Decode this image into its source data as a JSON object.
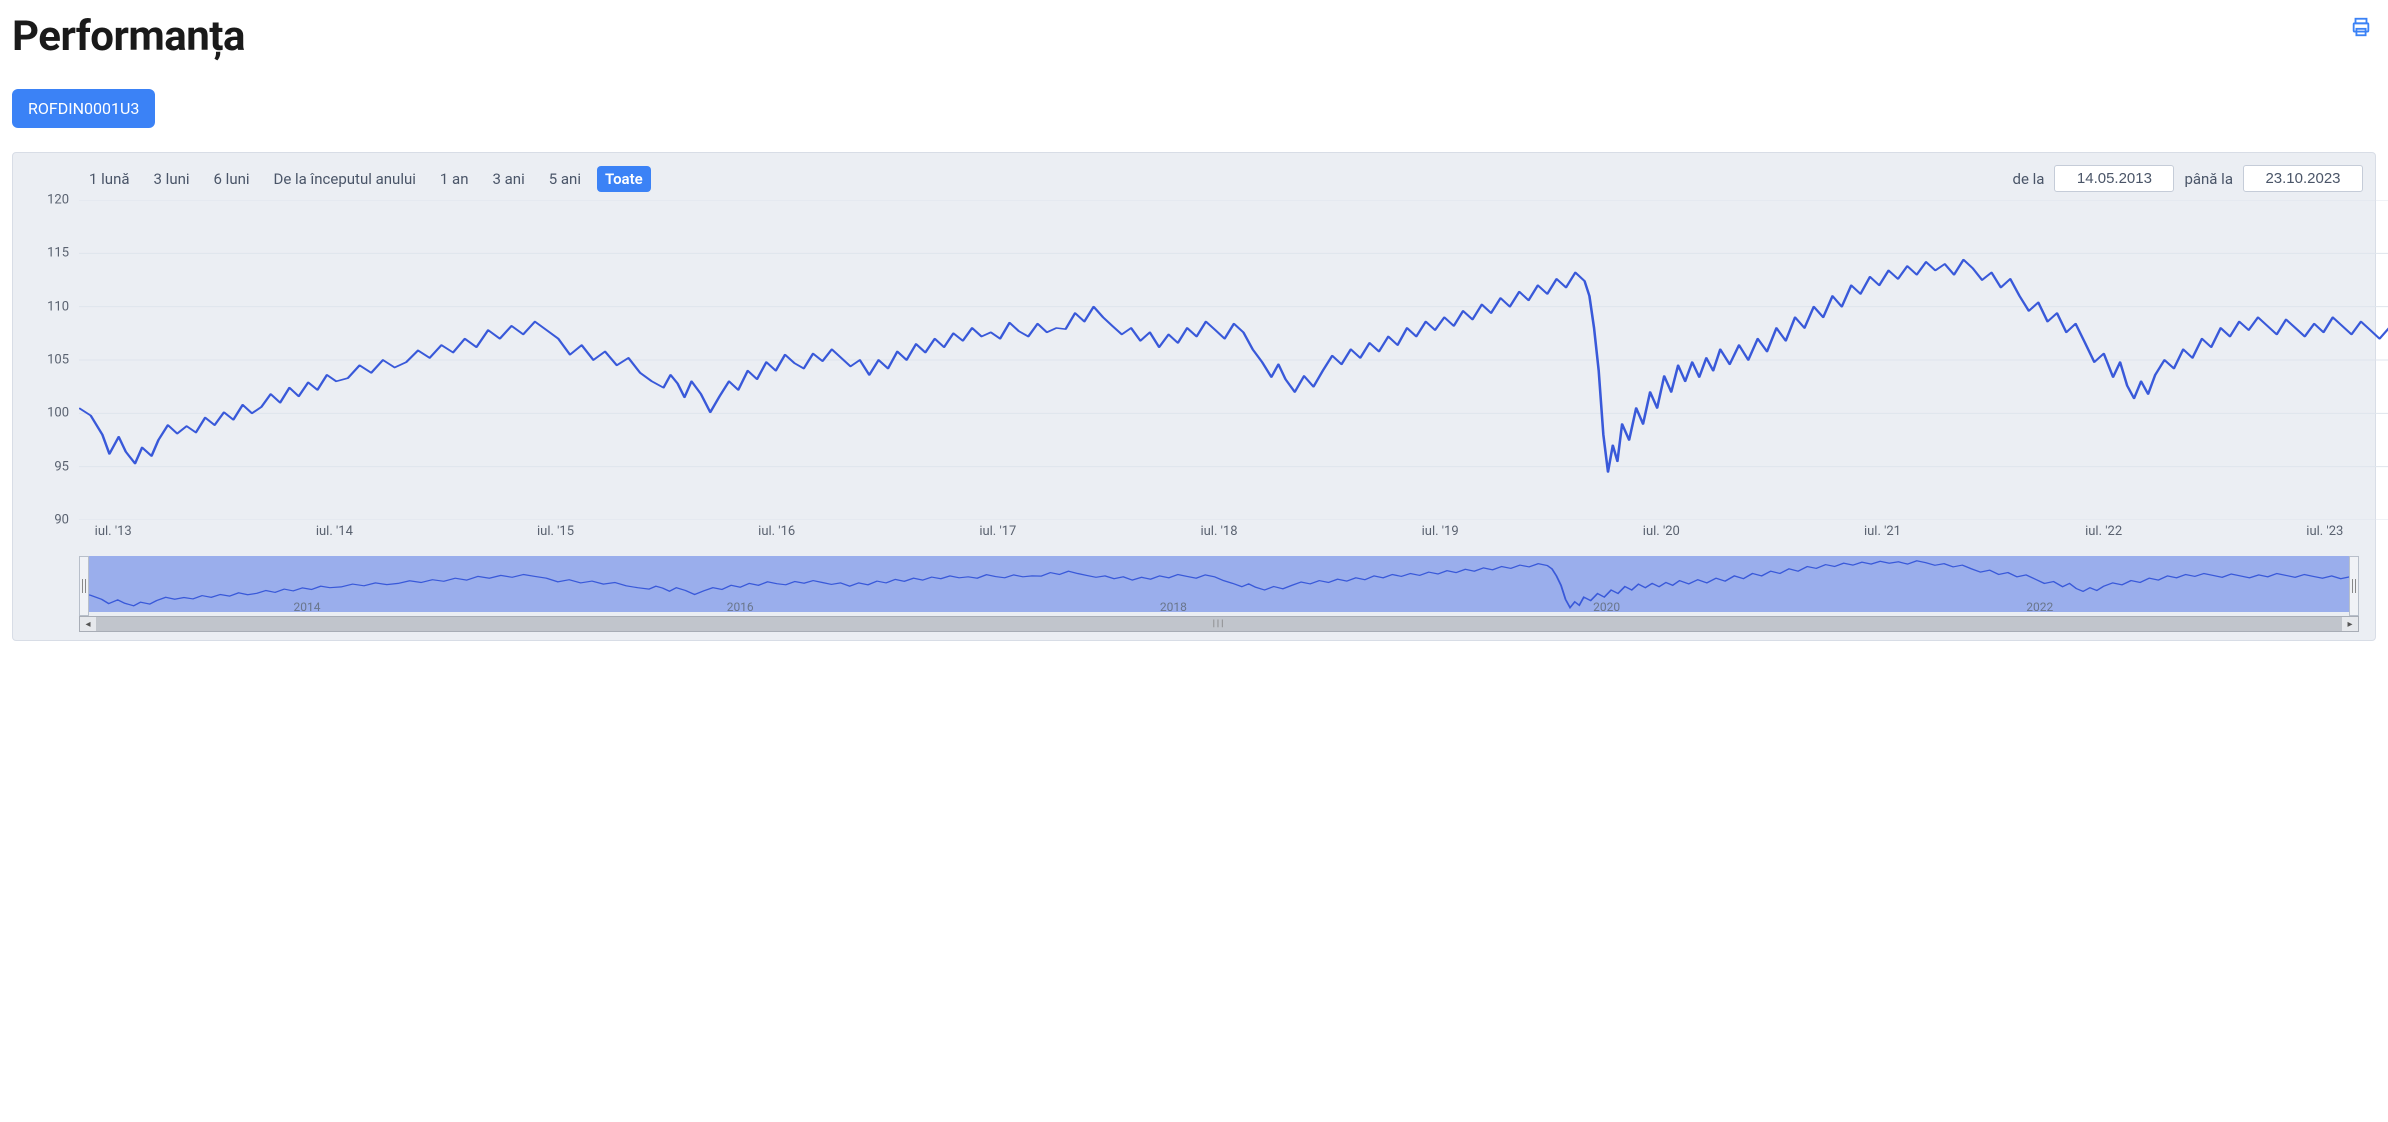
{
  "page": {
    "title": "Performanța"
  },
  "badge": {
    "label": "ROFDIN0001U3"
  },
  "range_selector": {
    "buttons": [
      {
        "label": "1 lună",
        "active": false
      },
      {
        "label": "3 luni",
        "active": false
      },
      {
        "label": "6 luni",
        "active": false
      },
      {
        "label": "De la începutul anului",
        "active": false
      },
      {
        "label": "1 an",
        "active": false
      },
      {
        "label": "3 ani",
        "active": false
      },
      {
        "label": "5 ani",
        "active": false
      },
      {
        "label": "Toate",
        "active": true
      }
    ],
    "from_label": "de la",
    "to_label": "până la",
    "from_value": "14.05.2013",
    "to_value": "23.10.2023"
  },
  "chart": {
    "type": "line",
    "background_color": "#ebeef3",
    "grid_color": "#dfe4ec",
    "line_color": "#3959d9",
    "line_width": 1.6,
    "ylim": [
      90,
      120
    ],
    "ytick_step": 5,
    "yticks": [
      90,
      95,
      100,
      105,
      110,
      115,
      120
    ],
    "xticks": [
      "iul. '13",
      "iul. '14",
      "iul. '15",
      "iul. '16",
      "iul. '17",
      "iul. '18",
      "iul. '19",
      "iul. '20",
      "iul. '21",
      "iul. '22",
      "iul. '23"
    ],
    "series": [
      {
        "t": 0.0,
        "v": 100.5
      },
      {
        "t": 0.005,
        "v": 99.8
      },
      {
        "t": 0.01,
        "v": 98.0
      },
      {
        "t": 0.013,
        "v": 96.2
      },
      {
        "t": 0.017,
        "v": 97.8
      },
      {
        "t": 0.02,
        "v": 96.4
      },
      {
        "t": 0.024,
        "v": 95.3
      },
      {
        "t": 0.027,
        "v": 96.8
      },
      {
        "t": 0.031,
        "v": 96.0
      },
      {
        "t": 0.034,
        "v": 97.5
      },
      {
        "t": 0.038,
        "v": 98.9
      },
      {
        "t": 0.042,
        "v": 98.1
      },
      {
        "t": 0.046,
        "v": 98.8
      },
      {
        "t": 0.05,
        "v": 98.2
      },
      {
        "t": 0.054,
        "v": 99.6
      },
      {
        "t": 0.058,
        "v": 98.9
      },
      {
        "t": 0.062,
        "v": 100.1
      },
      {
        "t": 0.066,
        "v": 99.4
      },
      {
        "t": 0.07,
        "v": 100.8
      },
      {
        "t": 0.074,
        "v": 100.0
      },
      {
        "t": 0.078,
        "v": 100.6
      },
      {
        "t": 0.082,
        "v": 101.8
      },
      {
        "t": 0.086,
        "v": 101.0
      },
      {
        "t": 0.09,
        "v": 102.4
      },
      {
        "t": 0.094,
        "v": 101.6
      },
      {
        "t": 0.098,
        "v": 102.9
      },
      {
        "t": 0.102,
        "v": 102.2
      },
      {
        "t": 0.106,
        "v": 103.6
      },
      {
        "t": 0.11,
        "v": 103.0
      },
      {
        "t": 0.115,
        "v": 103.3
      },
      {
        "t": 0.12,
        "v": 104.5
      },
      {
        "t": 0.125,
        "v": 103.8
      },
      {
        "t": 0.13,
        "v": 105.0
      },
      {
        "t": 0.135,
        "v": 104.3
      },
      {
        "t": 0.14,
        "v": 104.8
      },
      {
        "t": 0.145,
        "v": 105.9
      },
      {
        "t": 0.15,
        "v": 105.2
      },
      {
        "t": 0.155,
        "v": 106.4
      },
      {
        "t": 0.16,
        "v": 105.7
      },
      {
        "t": 0.165,
        "v": 107.0
      },
      {
        "t": 0.17,
        "v": 106.2
      },
      {
        "t": 0.175,
        "v": 107.8
      },
      {
        "t": 0.18,
        "v": 107.0
      },
      {
        "t": 0.185,
        "v": 108.2
      },
      {
        "t": 0.19,
        "v": 107.4
      },
      {
        "t": 0.195,
        "v": 108.6
      },
      {
        "t": 0.2,
        "v": 107.8
      },
      {
        "t": 0.205,
        "v": 107.0
      },
      {
        "t": 0.21,
        "v": 105.5
      },
      {
        "t": 0.215,
        "v": 106.4
      },
      {
        "t": 0.22,
        "v": 105.0
      },
      {
        "t": 0.225,
        "v": 105.8
      },
      {
        "t": 0.23,
        "v": 104.5
      },
      {
        "t": 0.235,
        "v": 105.2
      },
      {
        "t": 0.24,
        "v": 103.8
      },
      {
        "t": 0.245,
        "v": 103.0
      },
      {
        "t": 0.25,
        "v": 102.4
      },
      {
        "t": 0.253,
        "v": 103.6
      },
      {
        "t": 0.256,
        "v": 102.8
      },
      {
        "t": 0.259,
        "v": 101.5
      },
      {
        "t": 0.262,
        "v": 103.0
      },
      {
        "t": 0.266,
        "v": 101.8
      },
      {
        "t": 0.27,
        "v": 100.1
      },
      {
        "t": 0.274,
        "v": 101.6
      },
      {
        "t": 0.278,
        "v": 103.0
      },
      {
        "t": 0.282,
        "v": 102.2
      },
      {
        "t": 0.286,
        "v": 104.0
      },
      {
        "t": 0.29,
        "v": 103.2
      },
      {
        "t": 0.294,
        "v": 104.8
      },
      {
        "t": 0.298,
        "v": 104.0
      },
      {
        "t": 0.302,
        "v": 105.5
      },
      {
        "t": 0.306,
        "v": 104.7
      },
      {
        "t": 0.31,
        "v": 104.2
      },
      {
        "t": 0.314,
        "v": 105.6
      },
      {
        "t": 0.318,
        "v": 104.9
      },
      {
        "t": 0.322,
        "v": 106.0
      },
      {
        "t": 0.326,
        "v": 105.2
      },
      {
        "t": 0.33,
        "v": 104.4
      },
      {
        "t": 0.334,
        "v": 105.0
      },
      {
        "t": 0.338,
        "v": 103.6
      },
      {
        "t": 0.342,
        "v": 105.0
      },
      {
        "t": 0.346,
        "v": 104.2
      },
      {
        "t": 0.35,
        "v": 105.8
      },
      {
        "t": 0.354,
        "v": 105.0
      },
      {
        "t": 0.358,
        "v": 106.5
      },
      {
        "t": 0.362,
        "v": 105.7
      },
      {
        "t": 0.366,
        "v": 107.0
      },
      {
        "t": 0.37,
        "v": 106.2
      },
      {
        "t": 0.374,
        "v": 107.5
      },
      {
        "t": 0.378,
        "v": 106.8
      },
      {
        "t": 0.382,
        "v": 108.0
      },
      {
        "t": 0.386,
        "v": 107.2
      },
      {
        "t": 0.39,
        "v": 107.6
      },
      {
        "t": 0.394,
        "v": 107.0
      },
      {
        "t": 0.398,
        "v": 108.5
      },
      {
        "t": 0.402,
        "v": 107.7
      },
      {
        "t": 0.406,
        "v": 107.2
      },
      {
        "t": 0.41,
        "v": 108.4
      },
      {
        "t": 0.414,
        "v": 107.6
      },
      {
        "t": 0.418,
        "v": 108.0
      },
      {
        "t": 0.422,
        "v": 107.9
      },
      {
        "t": 0.426,
        "v": 109.4
      },
      {
        "t": 0.43,
        "v": 108.6
      },
      {
        "t": 0.434,
        "v": 110.0
      },
      {
        "t": 0.438,
        "v": 109.0
      },
      {
        "t": 0.442,
        "v": 108.2
      },
      {
        "t": 0.446,
        "v": 107.4
      },
      {
        "t": 0.45,
        "v": 108.0
      },
      {
        "t": 0.454,
        "v": 106.8
      },
      {
        "t": 0.458,
        "v": 107.6
      },
      {
        "t": 0.462,
        "v": 106.2
      },
      {
        "t": 0.466,
        "v": 107.4
      },
      {
        "t": 0.47,
        "v": 106.6
      },
      {
        "t": 0.474,
        "v": 108.0
      },
      {
        "t": 0.478,
        "v": 107.2
      },
      {
        "t": 0.482,
        "v": 108.6
      },
      {
        "t": 0.486,
        "v": 107.8
      },
      {
        "t": 0.49,
        "v": 107.0
      },
      {
        "t": 0.494,
        "v": 108.4
      },
      {
        "t": 0.498,
        "v": 107.6
      },
      {
        "t": 0.502,
        "v": 106.0
      },
      {
        "t": 0.506,
        "v": 104.8
      },
      {
        "t": 0.51,
        "v": 103.4
      },
      {
        "t": 0.513,
        "v": 104.6
      },
      {
        "t": 0.516,
        "v": 103.2
      },
      {
        "t": 0.52,
        "v": 102.0
      },
      {
        "t": 0.524,
        "v": 103.5
      },
      {
        "t": 0.528,
        "v": 102.5
      },
      {
        "t": 0.532,
        "v": 104.0
      },
      {
        "t": 0.536,
        "v": 105.4
      },
      {
        "t": 0.54,
        "v": 104.6
      },
      {
        "t": 0.544,
        "v": 106.0
      },
      {
        "t": 0.548,
        "v": 105.2
      },
      {
        "t": 0.552,
        "v": 106.6
      },
      {
        "t": 0.556,
        "v": 105.8
      },
      {
        "t": 0.56,
        "v": 107.2
      },
      {
        "t": 0.564,
        "v": 106.4
      },
      {
        "t": 0.568,
        "v": 108.0
      },
      {
        "t": 0.572,
        "v": 107.2
      },
      {
        "t": 0.576,
        "v": 108.6
      },
      {
        "t": 0.58,
        "v": 107.8
      },
      {
        "t": 0.584,
        "v": 109.0
      },
      {
        "t": 0.588,
        "v": 108.2
      },
      {
        "t": 0.592,
        "v": 109.6
      },
      {
        "t": 0.596,
        "v": 108.8
      },
      {
        "t": 0.6,
        "v": 110.2
      },
      {
        "t": 0.604,
        "v": 109.4
      },
      {
        "t": 0.608,
        "v": 110.8
      },
      {
        "t": 0.612,
        "v": 110.0
      },
      {
        "t": 0.616,
        "v": 111.4
      },
      {
        "t": 0.62,
        "v": 110.6
      },
      {
        "t": 0.624,
        "v": 112.0
      },
      {
        "t": 0.628,
        "v": 111.2
      },
      {
        "t": 0.632,
        "v": 112.6
      },
      {
        "t": 0.636,
        "v": 111.8
      },
      {
        "t": 0.64,
        "v": 113.2
      },
      {
        "t": 0.644,
        "v": 112.4
      },
      {
        "t": 0.646,
        "v": 111.0
      },
      {
        "t": 0.648,
        "v": 108.0
      },
      {
        "t": 0.65,
        "v": 104.0
      },
      {
        "t": 0.652,
        "v": 98.0
      },
      {
        "t": 0.654,
        "v": 94.5
      },
      {
        "t": 0.656,
        "v": 97.0
      },
      {
        "t": 0.658,
        "v": 95.5
      },
      {
        "t": 0.66,
        "v": 99.0
      },
      {
        "t": 0.663,
        "v": 97.5
      },
      {
        "t": 0.666,
        "v": 100.5
      },
      {
        "t": 0.669,
        "v": 99.0
      },
      {
        "t": 0.672,
        "v": 102.0
      },
      {
        "t": 0.675,
        "v": 100.5
      },
      {
        "t": 0.678,
        "v": 103.5
      },
      {
        "t": 0.681,
        "v": 102.0
      },
      {
        "t": 0.684,
        "v": 104.5
      },
      {
        "t": 0.687,
        "v": 103.0
      },
      {
        "t": 0.69,
        "v": 104.8
      },
      {
        "t": 0.693,
        "v": 103.4
      },
      {
        "t": 0.696,
        "v": 105.2
      },
      {
        "t": 0.699,
        "v": 104.0
      },
      {
        "t": 0.702,
        "v": 106.0
      },
      {
        "t": 0.706,
        "v": 104.6
      },
      {
        "t": 0.71,
        "v": 106.4
      },
      {
        "t": 0.714,
        "v": 105.0
      },
      {
        "t": 0.718,
        "v": 107.0
      },
      {
        "t": 0.722,
        "v": 105.8
      },
      {
        "t": 0.726,
        "v": 108.0
      },
      {
        "t": 0.73,
        "v": 106.8
      },
      {
        "t": 0.734,
        "v": 109.0
      },
      {
        "t": 0.738,
        "v": 108.0
      },
      {
        "t": 0.742,
        "v": 110.0
      },
      {
        "t": 0.746,
        "v": 109.0
      },
      {
        "t": 0.75,
        "v": 111.0
      },
      {
        "t": 0.754,
        "v": 110.0
      },
      {
        "t": 0.758,
        "v": 112.0
      },
      {
        "t": 0.762,
        "v": 111.2
      },
      {
        "t": 0.766,
        "v": 112.8
      },
      {
        "t": 0.77,
        "v": 112.0
      },
      {
        "t": 0.774,
        "v": 113.4
      },
      {
        "t": 0.778,
        "v": 112.6
      },
      {
        "t": 0.782,
        "v": 113.8
      },
      {
        "t": 0.786,
        "v": 113.0
      },
      {
        "t": 0.79,
        "v": 114.2
      },
      {
        "t": 0.794,
        "v": 113.4
      },
      {
        "t": 0.798,
        "v": 114.0
      },
      {
        "t": 0.802,
        "v": 113.0
      },
      {
        "t": 0.806,
        "v": 114.4
      },
      {
        "t": 0.81,
        "v": 113.6
      },
      {
        "t": 0.814,
        "v": 112.5
      },
      {
        "t": 0.818,
        "v": 113.2
      },
      {
        "t": 0.822,
        "v": 111.8
      },
      {
        "t": 0.826,
        "v": 112.6
      },
      {
        "t": 0.83,
        "v": 111.0
      },
      {
        "t": 0.834,
        "v": 109.6
      },
      {
        "t": 0.838,
        "v": 110.4
      },
      {
        "t": 0.842,
        "v": 108.6
      },
      {
        "t": 0.846,
        "v": 109.4
      },
      {
        "t": 0.85,
        "v": 107.6
      },
      {
        "t": 0.854,
        "v": 108.4
      },
      {
        "t": 0.858,
        "v": 106.6
      },
      {
        "t": 0.862,
        "v": 104.8
      },
      {
        "t": 0.866,
        "v": 105.6
      },
      {
        "t": 0.87,
        "v": 103.4
      },
      {
        "t": 0.873,
        "v": 104.8
      },
      {
        "t": 0.876,
        "v": 102.6
      },
      {
        "t": 0.879,
        "v": 101.4
      },
      {
        "t": 0.882,
        "v": 103.0
      },
      {
        "t": 0.885,
        "v": 101.8
      },
      {
        "t": 0.888,
        "v": 103.6
      },
      {
        "t": 0.892,
        "v": 105.0
      },
      {
        "t": 0.896,
        "v": 104.2
      },
      {
        "t": 0.9,
        "v": 106.0
      },
      {
        "t": 0.904,
        "v": 105.2
      },
      {
        "t": 0.908,
        "v": 107.0
      },
      {
        "t": 0.912,
        "v": 106.2
      },
      {
        "t": 0.916,
        "v": 108.0
      },
      {
        "t": 0.92,
        "v": 107.2
      },
      {
        "t": 0.924,
        "v": 108.6
      },
      {
        "t": 0.928,
        "v": 107.8
      },
      {
        "t": 0.932,
        "v": 109.0
      },
      {
        "t": 0.936,
        "v": 108.2
      },
      {
        "t": 0.94,
        "v": 107.4
      },
      {
        "t": 0.944,
        "v": 108.8
      },
      {
        "t": 0.948,
        "v": 108.0
      },
      {
        "t": 0.952,
        "v": 107.2
      },
      {
        "t": 0.956,
        "v": 108.4
      },
      {
        "t": 0.96,
        "v": 107.6
      },
      {
        "t": 0.964,
        "v": 109.0
      },
      {
        "t": 0.968,
        "v": 108.2
      },
      {
        "t": 0.972,
        "v": 107.4
      },
      {
        "t": 0.976,
        "v": 108.6
      },
      {
        "t": 0.98,
        "v": 107.8
      },
      {
        "t": 0.984,
        "v": 107.0
      },
      {
        "t": 0.988,
        "v": 108.0
      },
      {
        "t": 0.992,
        "v": 106.8
      },
      {
        "t": 0.996,
        "v": 107.6
      },
      {
        "t": 1.0,
        "v": 107.0
      }
    ]
  },
  "navigator": {
    "fill_color": "#6e8ce8",
    "fill_opacity": 0.65,
    "line_color": "#3959d9",
    "xticks": [
      "2014",
      "2016",
      "2018",
      "2020",
      "2022"
    ],
    "tick_positions": [
      0.1,
      0.29,
      0.48,
      0.67,
      0.86
    ]
  }
}
